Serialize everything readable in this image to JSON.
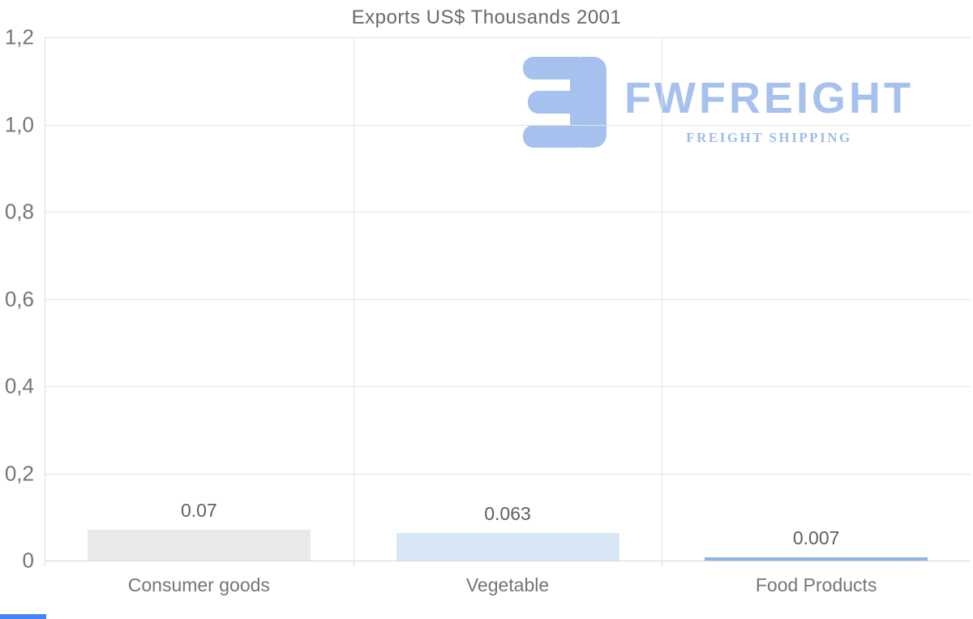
{
  "chart_data": {
    "type": "bar",
    "title": "Exports US$ Thousands 2001",
    "categories": [
      "Consumer goods",
      "Vegetable",
      "Food Products"
    ],
    "values": [
      0.07,
      0.063,
      0.007
    ],
    "value_labels": [
      "0.07",
      "0.063",
      "0.007"
    ],
    "bar_colors": [
      "#e9e9e9",
      "#d8e7f6",
      "#8fb5e0"
    ],
    "y_axis": {
      "ticks": [
        "1,2",
        "1,0",
        "0,8",
        "0,6",
        "0,4",
        "0,2",
        "0"
      ],
      "min": 0,
      "max": 1.2
    },
    "xlabel": "",
    "ylabel": "",
    "grid": true,
    "legend": false
  },
  "watermark": {
    "brand": "FWFREIGHT",
    "tagline": "FREIGHT SHIPPING",
    "icon": "fwfreight-logo-icon",
    "color": "#a6c1ee"
  },
  "colors": {
    "background": "#ffffff",
    "title_text": "#6a6a6a",
    "axis_labels": "#757575",
    "value_labels": "#5f5f5f",
    "gridline": "#e4e4e4",
    "axis_line": "#d6d6d6",
    "loading_bar": "#4285f4"
  }
}
